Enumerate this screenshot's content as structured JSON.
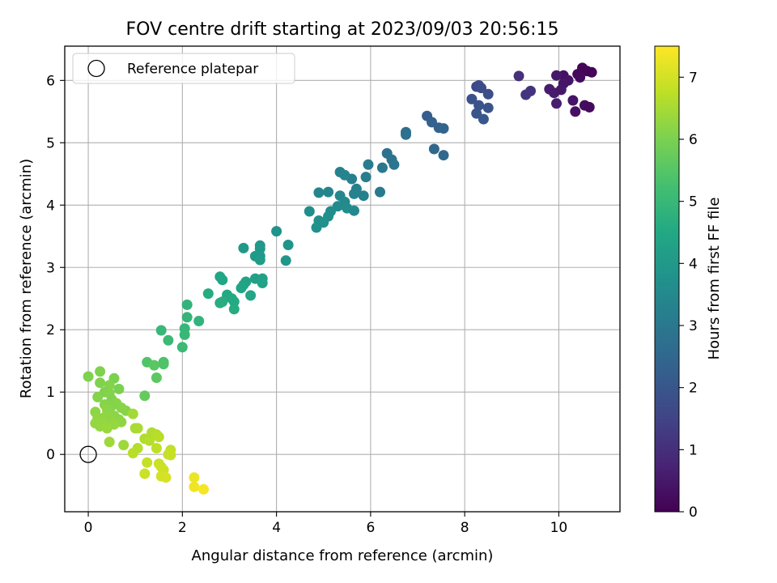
{
  "chart_data": {
    "type": "scatter",
    "title": "FOV centre drift starting at 2023/09/03 20:56:15",
    "xlabel": "Angular distance from reference (arcmin)",
    "ylabel": "Rotation from reference (arcmin)",
    "xlim": [
      -0.5,
      11.3
    ],
    "ylim": [
      -0.92,
      6.55
    ],
    "xticks": [
      0,
      2,
      4,
      6,
      8,
      10
    ],
    "yticks": [
      0,
      1,
      2,
      3,
      4,
      5,
      6
    ],
    "grid": true,
    "legend": {
      "placement": "top-left",
      "entries": [
        "Reference platepar"
      ]
    },
    "reference_point": {
      "x": 0,
      "y": 0,
      "marker": "open-circle",
      "label": "Reference platepar"
    },
    "colorbar": {
      "label": "Hours from first FF file",
      "colormap": "viridis",
      "range": [
        0,
        7.5
      ],
      "ticks": [
        0,
        1,
        2,
        3,
        4,
        5,
        6,
        7
      ]
    },
    "points": [
      {
        "x": 10.5,
        "y": 6.2,
        "c": 0.1
      },
      {
        "x": 10.4,
        "y": 6.1,
        "c": 0.15
      },
      {
        "x": 10.6,
        "y": 6.15,
        "c": 0.1
      },
      {
        "x": 10.7,
        "y": 6.13,
        "c": 0.05
      },
      {
        "x": 10.45,
        "y": 6.05,
        "c": 0.2
      },
      {
        "x": 10.1,
        "y": 6.08,
        "c": 0.35
      },
      {
        "x": 10.2,
        "y": 6.0,
        "c": 0.4
      },
      {
        "x": 9.95,
        "y": 6.08,
        "c": 0.5
      },
      {
        "x": 10.1,
        "y": 5.95,
        "c": 0.45
      },
      {
        "x": 9.8,
        "y": 5.86,
        "c": 0.6
      },
      {
        "x": 9.9,
        "y": 5.8,
        "c": 0.55
      },
      {
        "x": 10.05,
        "y": 5.85,
        "c": 0.5
      },
      {
        "x": 10.3,
        "y": 5.68,
        "c": 0.4
      },
      {
        "x": 9.95,
        "y": 5.63,
        "c": 0.6
      },
      {
        "x": 10.55,
        "y": 5.6,
        "c": 0.25
      },
      {
        "x": 10.65,
        "y": 5.57,
        "c": 0.2
      },
      {
        "x": 10.35,
        "y": 5.5,
        "c": 0.3
      },
      {
        "x": 9.15,
        "y": 6.07,
        "c": 1.0
      },
      {
        "x": 9.4,
        "y": 5.83,
        "c": 1.1
      },
      {
        "x": 9.3,
        "y": 5.77,
        "c": 1.15
      },
      {
        "x": 8.25,
        "y": 5.9,
        "c": 1.6
      },
      {
        "x": 8.3,
        "y": 5.92,
        "c": 1.7
      },
      {
        "x": 8.35,
        "y": 5.88,
        "c": 1.75
      },
      {
        "x": 8.5,
        "y": 5.78,
        "c": 1.8
      },
      {
        "x": 8.15,
        "y": 5.7,
        "c": 1.85
      },
      {
        "x": 8.3,
        "y": 5.6,
        "c": 1.9
      },
      {
        "x": 8.5,
        "y": 5.56,
        "c": 1.95
      },
      {
        "x": 8.25,
        "y": 5.47,
        "c": 2.0
      },
      {
        "x": 8.4,
        "y": 5.38,
        "c": 2.05
      },
      {
        "x": 7.2,
        "y": 5.43,
        "c": 2.2
      },
      {
        "x": 7.3,
        "y": 5.33,
        "c": 2.3
      },
      {
        "x": 7.45,
        "y": 5.24,
        "c": 2.35
      },
      {
        "x": 7.55,
        "y": 5.23,
        "c": 2.4
      },
      {
        "x": 7.35,
        "y": 4.9,
        "c": 2.5
      },
      {
        "x": 7.55,
        "y": 4.8,
        "c": 2.55
      },
      {
        "x": 6.75,
        "y": 5.17,
        "c": 2.7
      },
      {
        "x": 6.75,
        "y": 5.13,
        "c": 2.75
      },
      {
        "x": 6.35,
        "y": 4.83,
        "c": 2.8
      },
      {
        "x": 6.45,
        "y": 4.73,
        "c": 2.85
      },
      {
        "x": 6.5,
        "y": 4.65,
        "c": 2.9
      },
      {
        "x": 6.25,
        "y": 4.6,
        "c": 3.0
      },
      {
        "x": 5.95,
        "y": 4.65,
        "c": 3.1
      },
      {
        "x": 5.9,
        "y": 4.45,
        "c": 3.15
      },
      {
        "x": 5.6,
        "y": 4.42,
        "c": 3.2
      },
      {
        "x": 6.2,
        "y": 4.21,
        "c": 3.05
      },
      {
        "x": 5.7,
        "y": 4.26,
        "c": 3.25
      },
      {
        "x": 5.65,
        "y": 4.18,
        "c": 3.3
      },
      {
        "x": 5.85,
        "y": 4.15,
        "c": 3.25
      },
      {
        "x": 5.35,
        "y": 4.53,
        "c": 3.3
      },
      {
        "x": 5.45,
        "y": 4.48,
        "c": 3.35
      },
      {
        "x": 5.1,
        "y": 4.21,
        "c": 3.4
      },
      {
        "x": 5.35,
        "y": 4.15,
        "c": 3.45
      },
      {
        "x": 4.9,
        "y": 4.2,
        "c": 3.4
      },
      {
        "x": 5.45,
        "y": 4.05,
        "c": 3.5
      },
      {
        "x": 5.3,
        "y": 3.98,
        "c": 3.55
      },
      {
        "x": 5.5,
        "y": 3.95,
        "c": 3.6
      },
      {
        "x": 5.65,
        "y": 3.91,
        "c": 3.5
      },
      {
        "x": 5.15,
        "y": 3.9,
        "c": 3.6
      },
      {
        "x": 5.1,
        "y": 3.82,
        "c": 3.65
      },
      {
        "x": 4.7,
        "y": 3.9,
        "c": 3.65
      },
      {
        "x": 4.9,
        "y": 3.75,
        "c": 3.7
      },
      {
        "x": 5.0,
        "y": 3.72,
        "c": 3.75
      },
      {
        "x": 4.85,
        "y": 3.64,
        "c": 3.75
      },
      {
        "x": 4.0,
        "y": 3.58,
        "c": 3.8
      },
      {
        "x": 4.25,
        "y": 3.36,
        "c": 3.85
      },
      {
        "x": 4.2,
        "y": 3.11,
        "c": 3.9
      },
      {
        "x": 3.65,
        "y": 3.35,
        "c": 3.95
      },
      {
        "x": 3.65,
        "y": 3.3,
        "c": 4.0
      },
      {
        "x": 3.55,
        "y": 3.18,
        "c": 4.05
      },
      {
        "x": 3.65,
        "y": 3.18,
        "c": 4.05
      },
      {
        "x": 3.65,
        "y": 3.12,
        "c": 4.1
      },
      {
        "x": 3.3,
        "y": 3.31,
        "c": 4.0
      },
      {
        "x": 3.55,
        "y": 2.82,
        "c": 4.2
      },
      {
        "x": 3.7,
        "y": 2.82,
        "c": 4.25
      },
      {
        "x": 3.7,
        "y": 2.75,
        "c": 4.3
      },
      {
        "x": 3.35,
        "y": 2.77,
        "c": 4.3
      },
      {
        "x": 3.3,
        "y": 2.72,
        "c": 4.35
      },
      {
        "x": 3.25,
        "y": 2.67,
        "c": 4.4
      },
      {
        "x": 3.45,
        "y": 2.55,
        "c": 4.45
      },
      {
        "x": 2.8,
        "y": 2.85,
        "c": 4.4
      },
      {
        "x": 2.85,
        "y": 2.8,
        "c": 4.45
      },
      {
        "x": 2.95,
        "y": 2.56,
        "c": 4.5
      },
      {
        "x": 3.05,
        "y": 2.5,
        "c": 4.55
      },
      {
        "x": 3.1,
        "y": 2.45,
        "c": 4.55
      },
      {
        "x": 2.85,
        "y": 2.45,
        "c": 4.6
      },
      {
        "x": 3.1,
        "y": 2.33,
        "c": 4.6
      },
      {
        "x": 2.55,
        "y": 2.58,
        "c": 4.6
      },
      {
        "x": 2.8,
        "y": 2.43,
        "c": 4.65
      },
      {
        "x": 2.1,
        "y": 2.4,
        "c": 4.85
      },
      {
        "x": 2.1,
        "y": 2.2,
        "c": 4.9
      },
      {
        "x": 2.35,
        "y": 2.14,
        "c": 4.85
      },
      {
        "x": 2.05,
        "y": 2.02,
        "c": 4.95
      },
      {
        "x": 2.05,
        "y": 1.92,
        "c": 5.0
      },
      {
        "x": 1.55,
        "y": 1.99,
        "c": 5.0
      },
      {
        "x": 1.7,
        "y": 1.83,
        "c": 5.05
      },
      {
        "x": 2.0,
        "y": 1.72,
        "c": 5.05
      },
      {
        "x": 1.6,
        "y": 1.48,
        "c": 5.35
      },
      {
        "x": 1.6,
        "y": 1.45,
        "c": 5.4
      },
      {
        "x": 1.25,
        "y": 1.48,
        "c": 5.45
      },
      {
        "x": 1.4,
        "y": 1.43,
        "c": 5.55
      },
      {
        "x": 1.45,
        "y": 1.23,
        "c": 5.6
      },
      {
        "x": 1.2,
        "y": 0.94,
        "c": 5.7
      },
      {
        "x": 0.0,
        "y": 1.25,
        "c": 6.05
      },
      {
        "x": 0.25,
        "y": 1.33,
        "c": 6.05
      },
      {
        "x": 0.55,
        "y": 1.22,
        "c": 6.0
      },
      {
        "x": 0.25,
        "y": 1.15,
        "c": 6.05
      },
      {
        "x": 0.45,
        "y": 1.11,
        "c": 6.1
      },
      {
        "x": 0.65,
        "y": 1.05,
        "c": 6.0
      },
      {
        "x": 0.35,
        "y": 1.0,
        "c": 6.05
      },
      {
        "x": 0.45,
        "y": 0.98,
        "c": 6.1
      },
      {
        "x": 0.2,
        "y": 0.92,
        "c": 6.1
      },
      {
        "x": 0.5,
        "y": 0.88,
        "c": 6.05
      },
      {
        "x": 0.6,
        "y": 0.82,
        "c": 6.15
      },
      {
        "x": 0.35,
        "y": 0.8,
        "c": 6.15
      },
      {
        "x": 0.5,
        "y": 0.78,
        "c": 6.1
      },
      {
        "x": 0.7,
        "y": 0.75,
        "c": 6.15
      },
      {
        "x": 0.4,
        "y": 0.72,
        "c": 6.2
      },
      {
        "x": 0.8,
        "y": 0.7,
        "c": 6.15
      },
      {
        "x": 0.15,
        "y": 0.68,
        "c": 6.2
      },
      {
        "x": 0.45,
        "y": 0.65,
        "c": 6.2
      },
      {
        "x": 0.55,
        "y": 0.62,
        "c": 6.2
      },
      {
        "x": 0.35,
        "y": 0.6,
        "c": 6.25
      },
      {
        "x": 0.2,
        "y": 0.58,
        "c": 6.25
      },
      {
        "x": 0.65,
        "y": 0.56,
        "c": 6.2
      },
      {
        "x": 0.45,
        "y": 0.55,
        "c": 6.25
      },
      {
        "x": 0.7,
        "y": 0.52,
        "c": 6.25
      },
      {
        "x": 0.15,
        "y": 0.5,
        "c": 6.3
      },
      {
        "x": 0.3,
        "y": 0.5,
        "c": 6.3
      },
      {
        "x": 0.55,
        "y": 0.48,
        "c": 6.3
      },
      {
        "x": 0.25,
        "y": 0.45,
        "c": 6.3
      },
      {
        "x": 0.4,
        "y": 0.42,
        "c": 6.35
      },
      {
        "x": 0.45,
        "y": 0.2,
        "c": 6.4
      },
      {
        "x": 0.75,
        "y": 0.15,
        "c": 6.4
      },
      {
        "x": 0.95,
        "y": 0.65,
        "c": 6.45
      },
      {
        "x": 1.0,
        "y": 0.42,
        "c": 6.5
      },
      {
        "x": 1.05,
        "y": 0.42,
        "c": 6.55
      },
      {
        "x": 1.2,
        "y": 0.25,
        "c": 6.6
      },
      {
        "x": 1.3,
        "y": 0.22,
        "c": 6.65
      },
      {
        "x": 1.35,
        "y": 0.35,
        "c": 6.6
      },
      {
        "x": 1.45,
        "y": 0.32,
        "c": 6.65
      },
      {
        "x": 1.5,
        "y": 0.28,
        "c": 6.7
      },
      {
        "x": 1.05,
        "y": 0.1,
        "c": 6.65
      },
      {
        "x": 1.45,
        "y": 0.1,
        "c": 6.75
      },
      {
        "x": 0.95,
        "y": 0.02,
        "c": 6.7
      },
      {
        "x": 1.75,
        "y": 0.07,
        "c": 6.8
      },
      {
        "x": 1.7,
        "y": 0.0,
        "c": 6.85
      },
      {
        "x": 1.75,
        "y": -0.01,
        "c": 6.85
      },
      {
        "x": 1.25,
        "y": -0.13,
        "c": 6.85
      },
      {
        "x": 1.5,
        "y": -0.15,
        "c": 6.9
      },
      {
        "x": 1.55,
        "y": -0.2,
        "c": 6.9
      },
      {
        "x": 1.6,
        "y": -0.25,
        "c": 6.95
      },
      {
        "x": 1.2,
        "y": -0.31,
        "c": 6.9
      },
      {
        "x": 1.55,
        "y": -0.35,
        "c": 7.0
      },
      {
        "x": 1.65,
        "y": -0.37,
        "c": 7.05
      },
      {
        "x": 2.25,
        "y": -0.37,
        "c": 7.3
      },
      {
        "x": 2.25,
        "y": -0.52,
        "c": 7.35
      },
      {
        "x": 2.45,
        "y": -0.56,
        "c": 7.4
      }
    ]
  }
}
